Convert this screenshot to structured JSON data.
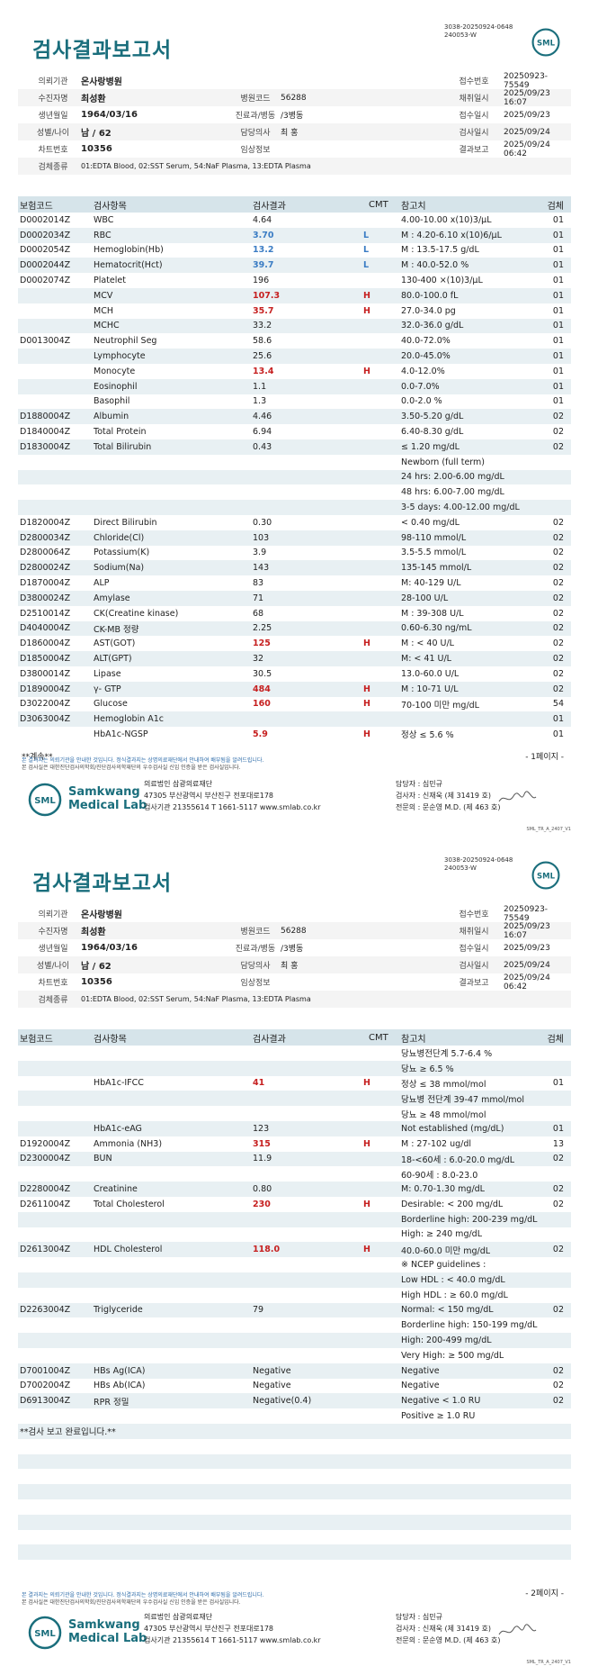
{
  "header": {
    "doc_id_1": "3038-20250924-0648",
    "doc_id_2": "240053-W",
    "title": "검사결과보고서",
    "logo_text": "SML"
  },
  "info": {
    "institution_label": "의뢰기관",
    "institution": "온사랑병원",
    "receipt_no_label": "접수번호",
    "receipt_no": "20250923-75549",
    "collector_label": "수진자명",
    "collector": "최성환",
    "hospital_code_label": "병원코드",
    "hospital_code": "56288",
    "collect_date_label": "채취일시",
    "collect_date": "2025/09/23 16:07",
    "dob_label": "생년월일",
    "dob": "1964/03/16",
    "dept_label": "진료과/병동",
    "dept": "/3병동",
    "receipt_date_label": "접수일시",
    "receipt_date": "2025/09/23",
    "sex_age_label": "성별/나이",
    "sex_age": "남 / 62",
    "doctor_label": "담당의사",
    "doctor": "최 홍",
    "test_date_label": "검사일시",
    "test_date": "2025/09/24",
    "chart_label": "차트번호",
    "chart": "10356",
    "clinical_label": "임상정보",
    "clinical": "",
    "report_label": "결과보고",
    "report": "2025/09/24 06:42",
    "specimen_label": "검체종류",
    "specimen": "01:EDTA Blood, 02:SST Serum, 54:NaF Plasma, 13:EDTA Plasma"
  },
  "table_headers": {
    "code": "보험코드",
    "item": "검사항목",
    "result": "검사결과",
    "cmt": "CMT",
    "ref": "참고치",
    "specimen": "검체"
  },
  "page1_rows": [
    {
      "code": "D0002014Z",
      "item": "WBC",
      "result": "4.64",
      "flag": "",
      "ref": "4.00-10.00 x(10)3/μL",
      "sp": "01"
    },
    {
      "code": "D0002034Z",
      "item": "RBC",
      "result": "3.70",
      "flag": "L",
      "ref": "M : 4.20-6.10 x(10)6/μL",
      "sp": "01"
    },
    {
      "code": "D0002054Z",
      "item": "Hemoglobin(Hb)",
      "result": "13.2",
      "flag": "L",
      "ref": "M : 13.5-17.5 g/dL",
      "sp": "01"
    },
    {
      "code": "D0002044Z",
      "item": "Hematocrit(Hct)",
      "result": "39.7",
      "flag": "L",
      "ref": "M : 40.0-52.0 %",
      "sp": "01"
    },
    {
      "code": "D0002074Z",
      "item": "Platelet",
      "result": "196",
      "flag": "",
      "ref": "130-400 ×(10)3/μL",
      "sp": "01"
    },
    {
      "code": "",
      "item": "MCV",
      "result": "107.3",
      "flag": "H",
      "ref": "80.0-100.0 fL",
      "sp": "01"
    },
    {
      "code": "",
      "item": "MCH",
      "result": "35.7",
      "flag": "H",
      "ref": "27.0-34.0 pg",
      "sp": "01"
    },
    {
      "code": "",
      "item": "MCHC",
      "result": "33.2",
      "flag": "",
      "ref": "32.0-36.0 g/dL",
      "sp": "01"
    },
    {
      "code": "D0013004Z",
      "item": "Neutrophil Seg",
      "result": "58.6",
      "flag": "",
      "ref": "40.0-72.0%",
      "sp": "01"
    },
    {
      "code": "",
      "item": "Lymphocyte",
      "result": "25.6",
      "flag": "",
      "ref": "20.0-45.0%",
      "sp": "01"
    },
    {
      "code": "",
      "item": "Monocyte",
      "result": "13.4",
      "flag": "H",
      "ref": "4.0-12.0%",
      "sp": "01"
    },
    {
      "code": "",
      "item": "Eosinophil",
      "result": "1.1",
      "flag": "",
      "ref": "0.0-7.0%",
      "sp": "01"
    },
    {
      "code": "",
      "item": "Basophil",
      "result": "1.3",
      "flag": "",
      "ref": "0.0-2.0 %",
      "sp": "01"
    },
    {
      "code": "D1880004Z",
      "item": "Albumin",
      "result": "4.46",
      "flag": "",
      "ref": "3.50-5.20 g/dL",
      "sp": "02"
    },
    {
      "code": "D1840004Z",
      "item": "Total Protein",
      "result": "6.94",
      "flag": "",
      "ref": "6.40-8.30 g/dL",
      "sp": "02"
    },
    {
      "code": "D1830004Z",
      "item": "Total Bilirubin",
      "result": "0.43",
      "flag": "",
      "ref": "≤ 1.20 mg/dL",
      "sp": "02"
    },
    {
      "code": "",
      "item": "",
      "result": "",
      "flag": "",
      "ref": "Newborn (full term)",
      "sp": ""
    },
    {
      "code": "",
      "item": "",
      "result": "",
      "flag": "",
      "ref": "24 hrs: 2.00-6.00 mg/dL",
      "sp": ""
    },
    {
      "code": "",
      "item": "",
      "result": "",
      "flag": "",
      "ref": "48 hrs: 6.00-7.00 mg/dL",
      "sp": ""
    },
    {
      "code": "",
      "item": "",
      "result": "",
      "flag": "",
      "ref": "3-5 days: 4.00-12.00 mg/dL",
      "sp": ""
    },
    {
      "code": "D1820004Z",
      "item": "Direct Bilirubin",
      "result": "0.30",
      "flag": "",
      "ref": "< 0.40 mg/dL",
      "sp": "02"
    },
    {
      "code": "D2800034Z",
      "item": "Chloride(Cl)",
      "result": "103",
      "flag": "",
      "ref": "98-110 mmol/L",
      "sp": "02"
    },
    {
      "code": "D2800064Z",
      "item": "Potassium(K)",
      "result": "3.9",
      "flag": "",
      "ref": "3.5-5.5 mmol/L",
      "sp": "02"
    },
    {
      "code": "D2800024Z",
      "item": "Sodium(Na)",
      "result": "143",
      "flag": "",
      "ref": "135-145 mmol/L",
      "sp": "02"
    },
    {
      "code": "D1870004Z",
      "item": "ALP",
      "result": "83",
      "flag": "",
      "ref": "M: 40-129 U/L",
      "sp": "02"
    },
    {
      "code": "D3800024Z",
      "item": "Amylase",
      "result": "71",
      "flag": "",
      "ref": "28-100 U/L",
      "sp": "02"
    },
    {
      "code": "D2510014Z",
      "item": "CK(Creatine kinase)",
      "result": "68",
      "flag": "",
      "ref": "M : 39-308 U/L",
      "sp": "02"
    },
    {
      "code": "D4040004Z",
      "item": "CK-MB 정량",
      "result": "2.25",
      "flag": "",
      "ref": "0.60-6.30 ng/mL",
      "sp": "02"
    },
    {
      "code": "D1860004Z",
      "item": "AST(GOT)",
      "result": "125",
      "flag": "H",
      "ref": "M : < 40 U/L",
      "sp": "02"
    },
    {
      "code": "D1850004Z",
      "item": "ALT(GPT)",
      "result": "32",
      "flag": "",
      "ref": "M: < 41 U/L",
      "sp": "02"
    },
    {
      "code": "D3800014Z",
      "item": "Lipase",
      "result": "30.5",
      "flag": "",
      "ref": "13.0-60.0 U/L",
      "sp": "02"
    },
    {
      "code": "D1890004Z",
      "item": "γ- GTP",
      "result": "484",
      "flag": "H",
      "ref": "M : 10-71 U/L",
      "sp": "02"
    },
    {
      "code": "D3022004Z",
      "item": "Glucose",
      "result": "160",
      "flag": "H",
      "ref": "70-100 미만 mg/dL",
      "sp": "54"
    },
    {
      "code": "D3063004Z",
      "item": "Hemoglobin A1c",
      "result": "",
      "flag": "",
      "ref": "",
      "sp": "01"
    },
    {
      "code": "",
      "item": "HbA1c-NGSP",
      "result": "5.9",
      "flag": "H",
      "ref": "정상 ≤ 5.6 %",
      "sp": "01"
    }
  ],
  "page2_rows": [
    {
      "code": "",
      "item": "",
      "result": "",
      "flag": "",
      "ref": "당뇨병전단계 5.7-6.4 %",
      "sp": ""
    },
    {
      "code": "",
      "item": "",
      "result": "",
      "flag": "",
      "ref": "당뇨 ≥ 6.5 %",
      "sp": ""
    },
    {
      "code": "",
      "item": "HbA1c-IFCC",
      "result": "41",
      "flag": "H",
      "ref": "정상 ≤ 38 mmol/mol",
      "sp": "01"
    },
    {
      "code": "",
      "item": "",
      "result": "",
      "flag": "",
      "ref": "당뇨병 전단계 39-47 mmol/mol",
      "sp": ""
    },
    {
      "code": "",
      "item": "",
      "result": "",
      "flag": "",
      "ref": "당뇨 ≥ 48 mmol/mol",
      "sp": ""
    },
    {
      "code": "",
      "item": "HbA1c-eAG",
      "result": "123",
      "flag": "",
      "ref": "Not established (mg/dL)",
      "sp": "01"
    },
    {
      "code": "D1920004Z",
      "item": "Ammonia (NH3)",
      "result": "315",
      "flag": "H",
      "ref": "M : 27-102 ug/dl",
      "sp": "13"
    },
    {
      "code": "D2300004Z",
      "item": "BUN",
      "result": "11.9",
      "flag": "",
      "ref": "18-<60세 : 6.0-20.0 mg/dL",
      "sp": "02"
    },
    {
      "code": "",
      "item": "",
      "result": "",
      "flag": "",
      "ref": "60-90세 : 8.0-23.0",
      "sp": ""
    },
    {
      "code": "D2280004Z",
      "item": "Creatinine",
      "result": "0.80",
      "flag": "",
      "ref": "M: 0.70-1.30 mg/dL",
      "sp": "02"
    },
    {
      "code": "D2611004Z",
      "item": "Total Cholesterol",
      "result": "230",
      "flag": "H",
      "ref": "Desirable: < 200 mg/dL",
      "sp": "02"
    },
    {
      "code": "",
      "item": "",
      "result": "",
      "flag": "",
      "ref": "Borderline high: 200-239 mg/dL",
      "sp": ""
    },
    {
      "code": "",
      "item": "",
      "result": "",
      "flag": "",
      "ref": "High: ≥ 240 mg/dL",
      "sp": ""
    },
    {
      "code": "D2613004Z",
      "item": "HDL Cholesterol",
      "result": "118.0",
      "flag": "H",
      "ref": "40.0-60.0 미만 mg/dL",
      "sp": "02"
    },
    {
      "code": "",
      "item": "",
      "result": "",
      "flag": "",
      "ref": "※ NCEP guidelines :",
      "sp": ""
    },
    {
      "code": "",
      "item": "",
      "result": "",
      "flag": "",
      "ref": "Low HDL : < 40.0 mg/dL",
      "sp": ""
    },
    {
      "code": "",
      "item": "",
      "result": "",
      "flag": "",
      "ref": "High HDL : ≥ 60.0 mg/dL",
      "sp": ""
    },
    {
      "code": "D2263004Z",
      "item": "Triglyceride",
      "result": "79",
      "flag": "",
      "ref": "Normal: < 150 mg/dL",
      "sp": "02"
    },
    {
      "code": "",
      "item": "",
      "result": "",
      "flag": "",
      "ref": "Borderline high: 150-199 mg/dL",
      "sp": ""
    },
    {
      "code": "",
      "item": "",
      "result": "",
      "flag": "",
      "ref": "High: 200-499 mg/dL",
      "sp": ""
    },
    {
      "code": "",
      "item": "",
      "result": "",
      "flag": "",
      "ref": "Very High: ≥ 500 mg/dL",
      "sp": ""
    },
    {
      "code": "D7001004Z",
      "item": "HBs Ag(ICA)",
      "result": "Negative",
      "flag": "",
      "ref": "Negative",
      "sp": "02"
    },
    {
      "code": "D7002004Z",
      "item": "HBs Ab(ICA)",
      "result": "Negative",
      "flag": "",
      "ref": "Negative",
      "sp": "02"
    },
    {
      "code": "D6913004Z",
      "item": "RPR 정밀",
      "result": "Negative(0.4)",
      "flag": "",
      "ref": "Negative < 1.0 RU",
      "sp": "02"
    },
    {
      "code": "",
      "item": "",
      "result": "",
      "flag": "",
      "ref": "Positive ≥ 1.0 RU",
      "sp": ""
    },
    {
      "code": "**검사 보고 완료입니다.**",
      "item": "",
      "result": "",
      "flag": "",
      "ref": "",
      "sp": ""
    },
    {
      "code": "",
      "item": "",
      "result": "",
      "flag": "",
      "ref": "",
      "sp": ""
    },
    {
      "code": "",
      "item": "",
      "result": "",
      "flag": "",
      "ref": "",
      "sp": ""
    },
    {
      "code": "",
      "item": "",
      "result": "",
      "flag": "",
      "ref": "",
      "sp": ""
    },
    {
      "code": "",
      "item": "",
      "result": "",
      "flag": "",
      "ref": "",
      "sp": ""
    },
    {
      "code": "",
      "item": "",
      "result": "",
      "flag": "",
      "ref": "",
      "sp": ""
    },
    {
      "code": "",
      "item": "",
      "result": "",
      "flag": "",
      "ref": "",
      "sp": ""
    },
    {
      "code": "",
      "item": "",
      "result": "",
      "flag": "",
      "ref": "",
      "sp": ""
    },
    {
      "code": "",
      "item": "",
      "result": "",
      "flag": "",
      "ref": "",
      "sp": ""
    },
    {
      "code": "",
      "item": "",
      "result": "",
      "flag": "",
      "ref": "",
      "sp": ""
    }
  ],
  "page1": {
    "continued": "**계속**",
    "page_label": "- 1페이지 -"
  },
  "page2": {
    "page_label": "- 2페이지 -"
  },
  "notes": {
    "line1": "본 결과지는 의뢰기관을 안내한 것입니다. 정식결과지는 상명의료재단에서 안내하여 배부됨을 알려드립니다.",
    "line2": "본 검사실은 대한진단검사의학회/진단검사의학재단의 우수검사실 신임 인증을 받은 검사실입니다."
  },
  "footer": {
    "brand_line1": "Samkwang",
    "brand_line2": "Medical Lab",
    "org": "의료법인 삼광의료재단",
    "address": "47305 부산광역시 부산진구 전포대로178",
    "contact": "검사기관 21355614 T 1661-5117 www.smlab.co.kr",
    "staff1": "담당자 : 심민규",
    "staff2": "검사자 : 신재욱  (제 31419 호)",
    "staff3": "전문의 : 문순영 M.D. (제 463 호)",
    "form_code": "SML_TR_A_2407_V1"
  },
  "colors": {
    "title": "#1a6e7c",
    "header_bg": "#d6e4ea",
    "row_alt": "#e8f0f3",
    "high": "#c62020",
    "low": "#3a7cc4"
  }
}
